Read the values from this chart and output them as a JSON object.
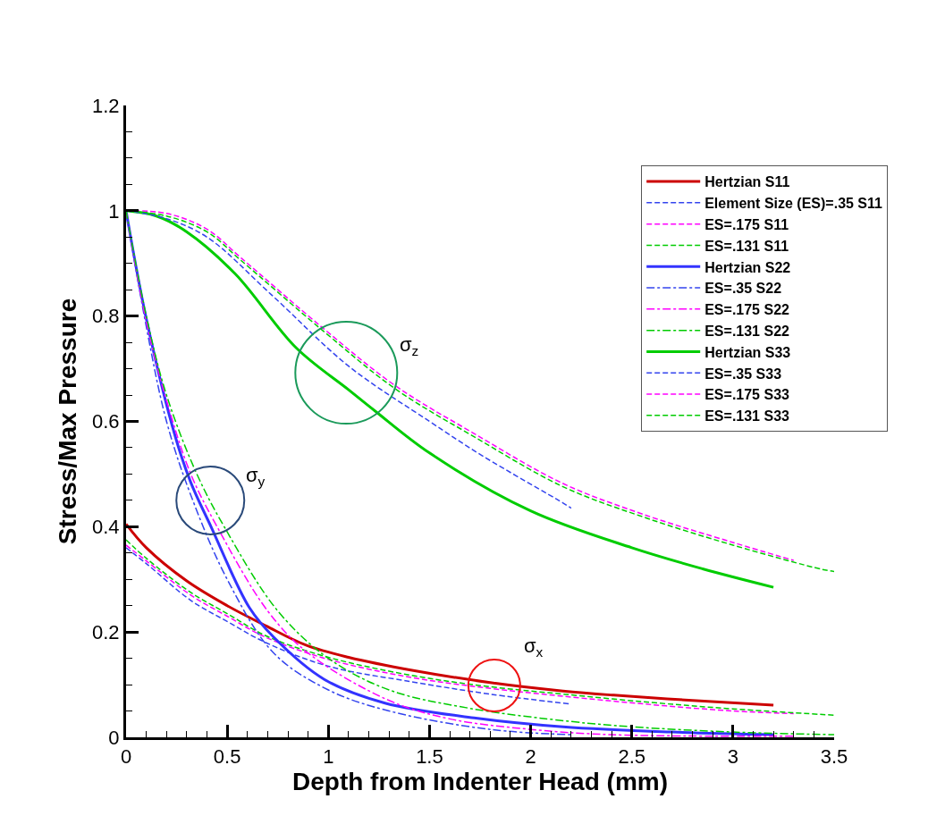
{
  "chart_data": {
    "type": "line",
    "xlabel": "Depth from Indenter Head (mm)",
    "ylabel": "Stress/Max Pressure",
    "xlim": [
      0,
      3.5
    ],
    "ylim": [
      0,
      1.2
    ],
    "xticks": [
      0,
      0.5,
      1,
      1.5,
      2,
      2.5,
      3,
      3.5,
      {
        "value": 0.1,
        "label": null
      },
      {
        "value": 0.2,
        "label": null
      },
      {
        "value": 0.3,
        "label": null
      },
      {
        "value": 0.4,
        "label": null
      },
      {
        "value": 0.6,
        "label": null
      },
      {
        "value": 0.7,
        "label": null
      },
      {
        "value": 0.8,
        "label": null
      },
      {
        "value": 0.9,
        "label": null
      },
      {
        "value": 1.1,
        "label": null
      },
      {
        "value": 1.2,
        "label": null
      },
      {
        "value": 1.3,
        "label": null
      },
      {
        "value": 1.4,
        "label": null
      },
      {
        "value": 1.6,
        "label": null
      },
      {
        "value": 1.7,
        "label": null
      },
      {
        "value": 1.8,
        "label": null
      },
      {
        "value": 1.9,
        "label": null
      },
      {
        "value": 2.1,
        "label": null
      },
      {
        "value": 2.2,
        "label": null
      },
      {
        "value": 2.3,
        "label": null
      },
      {
        "value": 2.4,
        "label": null
      },
      {
        "value": 2.6,
        "label": null
      },
      {
        "value": 2.7,
        "label": null
      },
      {
        "value": 2.8,
        "label": null
      },
      {
        "value": 2.9,
        "label": null
      },
      {
        "value": 3.1,
        "label": null
      },
      {
        "value": 3.2,
        "label": null
      },
      {
        "value": 3.3,
        "label": null
      },
      {
        "value": 3.4,
        "label": null
      }
    ],
    "yticks": [
      0,
      0.2,
      0.4,
      0.6,
      0.8,
      1,
      1.2,
      {
        "value": 0.05,
        "label": null
      },
      {
        "value": 0.1,
        "label": null
      },
      {
        "value": 0.15,
        "label": null
      },
      {
        "value": 0.25,
        "label": null
      },
      {
        "value": 0.3,
        "label": null
      },
      {
        "value": 0.35,
        "label": null
      },
      {
        "value": 0.45,
        "label": null
      },
      {
        "value": 0.5,
        "label": null
      },
      {
        "value": 0.55,
        "label": null
      },
      {
        "value": 0.65,
        "label": null
      },
      {
        "value": 0.7,
        "label": null
      },
      {
        "value": 0.75,
        "label": null
      },
      {
        "value": 0.85,
        "label": null
      },
      {
        "value": 0.9,
        "label": null
      },
      {
        "value": 0.95,
        "label": null
      },
      {
        "value": 1.05,
        "label": null
      },
      {
        "value": 1.1,
        "label": null
      },
      {
        "value": 1.15,
        "label": null
      }
    ],
    "legend": "top right",
    "marker": "none",
    "series": [
      {
        "name": "Hertzian S11",
        "color": "#cc0000",
        "line_style": "solid",
        "x": [
          0,
          0.1,
          0.3,
          0.5,
          0.69,
          0.89,
          1.1,
          1.42,
          1.8,
          2.16,
          2.41,
          2.8,
          3.2
        ],
        "values": [
          0.405,
          0.36,
          0.297,
          0.25,
          0.212,
          0.175,
          0.152,
          0.127,
          0.104,
          0.088,
          0.08,
          0.07,
          0.061
        ]
      },
      {
        "name": "Element Size (ES)=.35 S11",
        "color": "#3344ee",
        "line_style": "dashed",
        "x": [
          0,
          0.1,
          0.32,
          0.5,
          0.69,
          1.0,
          1.42,
          1.8,
          2.2
        ],
        "values": [
          0.36,
          0.33,
          0.26,
          0.22,
          0.18,
          0.135,
          0.105,
          0.082,
          0.063
        ]
      },
      {
        "name": "ES=.175 S11",
        "color": "#ff00ff",
        "line_style": "dashed",
        "x": [
          0,
          0.1,
          0.32,
          0.5,
          0.69,
          1.0,
          1.42,
          1.8,
          2.16,
          2.6,
          3.0,
          3.3
        ],
        "values": [
          0.365,
          0.335,
          0.27,
          0.23,
          0.19,
          0.148,
          0.113,
          0.093,
          0.078,
          0.062,
          0.05,
          0.045
        ]
      },
      {
        "name": "ES=.131 S11",
        "color": "#00cc00",
        "line_style": "dashed",
        "x": [
          0,
          0.1,
          0.32,
          0.5,
          0.69,
          1.0,
          1.42,
          1.8,
          2.16,
          2.6,
          3.0,
          3.5
        ],
        "values": [
          0.375,
          0.34,
          0.275,
          0.235,
          0.193,
          0.152,
          0.117,
          0.096,
          0.082,
          0.066,
          0.054,
          0.042
        ]
      },
      {
        "name": "Hertzian S22",
        "color": "#3333ff",
        "line_style": "solid",
        "x": [
          0,
          0.1,
          0.245,
          0.32,
          0.42,
          0.61,
          0.73,
          0.98,
          1.28,
          1.72,
          2.16,
          2.7,
          3.2
        ],
        "values": [
          1,
          0.795,
          0.569,
          0.484,
          0.4,
          0.246,
          0.19,
          0.11,
          0.065,
          0.037,
          0.02,
          0.01,
          0.005
        ]
      },
      {
        "name": "ES=.35 S22",
        "color": "#3344ee",
        "line_style": "dashdot",
        "x": [
          0,
          0.1,
          0.2,
          0.32,
          0.5,
          0.73,
          1.0,
          1.3,
          1.8,
          2.2
        ],
        "values": [
          1,
          0.78,
          0.6,
          0.46,
          0.3,
          0.16,
          0.09,
          0.05,
          0.015,
          0.005
        ]
      },
      {
        "name": "ES=.175 S22",
        "color": "#ff00ff",
        "line_style": "dashdot",
        "x": [
          0,
          0.1,
          0.2,
          0.32,
          0.45,
          0.7,
          0.9,
          1.3,
          1.6,
          2.0,
          2.4,
          3.3
        ],
        "values": [
          1,
          0.79,
          0.64,
          0.5,
          0.4,
          0.24,
          0.16,
          0.07,
          0.035,
          0.015,
          0.005,
          0.002
        ]
      },
      {
        "name": "ES=.131 S22",
        "color": "#00cc00",
        "line_style": "dashdot",
        "x": [
          0,
          0.1,
          0.2,
          0.35,
          0.5,
          0.75,
          1.0,
          1.3,
          1.7,
          2.2,
          2.5,
          3.0,
          3.5
        ],
        "values": [
          1,
          0.8,
          0.65,
          0.5,
          0.39,
          0.24,
          0.15,
          0.09,
          0.055,
          0.03,
          0.02,
          0.01,
          0.005
        ]
      },
      {
        "name": "Hertzian S33",
        "color": "#00cc00",
        "line_style": "solid",
        "x": [
          0,
          0.15,
          0.3,
          0.54,
          0.84,
          1.1,
          1.23,
          1.5,
          2.0,
          2.5,
          2.85,
          3.2
        ],
        "values": [
          1,
          0.99,
          0.96,
          0.88,
          0.74,
          0.66,
          0.62,
          0.54,
          0.43,
          0.36,
          0.32,
          0.285
        ]
      },
      {
        "name": "ES=.35 S33",
        "color": "#3344ee",
        "line_style": "dashed",
        "x": [
          0,
          0.2,
          0.4,
          0.72,
          1.1,
          1.5,
          1.76,
          2.16,
          2.2
        ],
        "values": [
          1,
          0.985,
          0.95,
          0.84,
          0.705,
          0.6,
          0.535,
          0.445,
          0.435
        ]
      },
      {
        "name": "ES=.175 S33",
        "color": "#ff00ff",
        "line_style": "dashed",
        "x": [
          0,
          0.2,
          0.4,
          0.57,
          0.98,
          1.33,
          1.72,
          2.16,
          2.56,
          3.0,
          3.3
        ],
        "values": [
          1,
          0.995,
          0.965,
          0.91,
          0.775,
          0.668,
          0.577,
          0.482,
          0.423,
          0.37,
          0.336
        ]
      },
      {
        "name": "ES=.131 S33",
        "color": "#00cc00",
        "line_style": "dashed",
        "x": [
          0,
          0.2,
          0.4,
          0.57,
          0.98,
          1.33,
          1.72,
          2.16,
          2.56,
          3.0,
          3.44,
          3.5
        ],
        "values": [
          1,
          0.99,
          0.96,
          0.905,
          0.77,
          0.662,
          0.571,
          0.476,
          0.418,
          0.365,
          0.319,
          0.315
        ]
      }
    ],
    "annotations": [
      "σ$_{z}$",
      "σ$_{y}$",
      "σ$_{x}$"
    ]
  }
}
